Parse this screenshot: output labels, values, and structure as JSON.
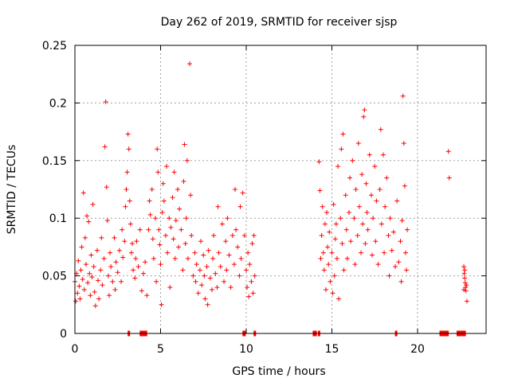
{
  "chart_data": {
    "type": "scatter",
    "title": "Day 262 of 2019, SRMTID for receiver sjsp",
    "xlabel": "GPS time / hours",
    "ylabel": "SRMTID / TECUs",
    "xlim": [
      0,
      24
    ],
    "ylim": [
      0,
      0.25
    ],
    "x_ticks": [
      0,
      5,
      10,
      15,
      20
    ],
    "x_tick_labels": [
      "0",
      "5",
      "10",
      "15",
      "20"
    ],
    "y_ticks": [
      0,
      0.05,
      0.1,
      0.15,
      0.2,
      0.25
    ],
    "y_tick_labels": [
      "0",
      "0.05",
      "0.1",
      "0.15",
      "0.2",
      "0.25"
    ],
    "grid": true,
    "marker": "plus",
    "color": "#ff0000",
    "series": [
      {
        "name": "SRMTID",
        "points": [
          [
            0.0,
            0.045
          ],
          [
            0.05,
            0.028
          ],
          [
            0.1,
            0.052
          ],
          [
            0.15,
            0.035
          ],
          [
            0.2,
            0.063
          ],
          [
            0.25,
            0.041
          ],
          [
            0.3,
            0.03
          ],
          [
            0.35,
            0.055
          ],
          [
            0.4,
            0.075
          ],
          [
            0.45,
            0.047
          ],
          [
            0.5,
            0.122
          ],
          [
            0.55,
            0.038
          ],
          [
            0.6,
            0.083
          ],
          [
            0.65,
            0.06
          ],
          [
            0.7,
            0.102
          ],
          [
            0.75,
            0.044
          ],
          [
            0.8,
            0.097
          ],
          [
            0.85,
            0.052
          ],
          [
            0.9,
            0.033
          ],
          [
            0.95,
            0.068
          ],
          [
            1.0,
            0.049
          ],
          [
            1.05,
            0.112
          ],
          [
            1.1,
            0.058
          ],
          [
            1.15,
            0.036
          ],
          [
            1.2,
            0.024
          ],
          [
            1.3,
            0.072
          ],
          [
            1.35,
            0.046
          ],
          [
            1.4,
            0.03
          ],
          [
            1.5,
            0.055
          ],
          [
            1.55,
            0.083
          ],
          [
            1.6,
            0.042
          ],
          [
            1.7,
            0.065
          ],
          [
            1.75,
            0.162
          ],
          [
            1.8,
            0.201
          ],
          [
            1.85,
            0.127
          ],
          [
            1.9,
            0.098
          ],
          [
            1.95,
            0.05
          ],
          [
            2.0,
            0.033
          ],
          [
            2.05,
            0.07
          ],
          [
            2.1,
            0.058
          ],
          [
            2.2,
            0.045
          ],
          [
            2.3,
            0.083
          ],
          [
            2.35,
            0.038
          ],
          [
            2.4,
            0.062
          ],
          [
            2.5,
            0.053
          ],
          [
            2.6,
            0.072
          ],
          [
            2.7,
            0.045
          ],
          [
            2.75,
            0.09
          ],
          [
            2.8,
            0.066
          ],
          [
            2.9,
            0.08
          ],
          [
            2.95,
            0.11
          ],
          [
            3.0,
            0.125
          ],
          [
            3.05,
            0.14
          ],
          [
            3.1,
            0.173
          ],
          [
            3.15,
            0.16
          ],
          [
            3.2,
            0.115
          ],
          [
            3.25,
            0.095
          ],
          [
            3.3,
            0.07
          ],
          [
            3.35,
            0.078
          ],
          [
            3.4,
            0.055
          ],
          [
            3.5,
            0.048
          ],
          [
            3.55,
            0.065
          ],
          [
            3.6,
            0.08
          ],
          [
            3.7,
            0.058
          ],
          [
            3.8,
            0.09
          ],
          [
            3.9,
            0.037
          ],
          [
            4.0,
            0.052
          ],
          [
            4.1,
            0.062
          ],
          [
            4.2,
            0.033
          ],
          [
            4.3,
            0.09
          ],
          [
            4.35,
            0.115
          ],
          [
            4.4,
            0.103
          ],
          [
            4.5,
            0.125
          ],
          [
            4.55,
            0.082
          ],
          [
            4.6,
            0.065
          ],
          [
            4.7,
            0.1
          ],
          [
            4.75,
            0.045
          ],
          [
            4.8,
            0.16
          ],
          [
            4.85,
            0.14
          ],
          [
            4.9,
            0.09
          ],
          [
            4.95,
            0.077
          ],
          [
            5.0,
            0.06
          ],
          [
            5.05,
            0.025
          ],
          [
            5.1,
            0.105
          ],
          [
            5.15,
            0.13
          ],
          [
            5.2,
            0.115
          ],
          [
            5.3,
            0.085
          ],
          [
            5.35,
            0.145
          ],
          [
            5.4,
            0.07
          ],
          [
            5.5,
            0.1
          ],
          [
            5.55,
            0.04
          ],
          [
            5.6,
            0.092
          ],
          [
            5.7,
            0.118
          ],
          [
            5.75,
            0.082
          ],
          [
            5.8,
            0.14
          ],
          [
            5.85,
            0.065
          ],
          [
            5.9,
            0.098
          ],
          [
            6.0,
            0.125
          ],
          [
            6.05,
            0.075
          ],
          [
            6.1,
            0.108
          ],
          [
            6.2,
            0.09
          ],
          [
            6.3,
            0.055
          ],
          [
            6.35,
            0.132
          ],
          [
            6.4,
            0.164
          ],
          [
            6.45,
            0.078
          ],
          [
            6.5,
            0.1
          ],
          [
            6.55,
            0.15
          ],
          [
            6.6,
            0.065
          ],
          [
            6.7,
            0.234
          ],
          [
            6.75,
            0.12
          ],
          [
            6.8,
            0.085
          ],
          [
            6.9,
            0.05
          ],
          [
            7.0,
            0.07
          ],
          [
            7.05,
            0.045
          ],
          [
            7.1,
            0.06
          ],
          [
            7.2,
            0.035
          ],
          [
            7.3,
            0.055
          ],
          [
            7.35,
            0.08
          ],
          [
            7.4,
            0.042
          ],
          [
            7.5,
            0.068
          ],
          [
            7.55,
            0.05
          ],
          [
            7.6,
            0.03
          ],
          [
            7.7,
            0.058
          ],
          [
            7.75,
            0.025
          ],
          [
            7.8,
            0.072
          ],
          [
            7.9,
            0.048
          ],
          [
            8.0,
            0.038
          ],
          [
            8.05,
            0.065
          ],
          [
            8.1,
            0.085
          ],
          [
            8.2,
            0.052
          ],
          [
            8.3,
            0.04
          ],
          [
            8.35,
            0.11
          ],
          [
            8.4,
            0.07
          ],
          [
            8.5,
            0.058
          ],
          [
            8.6,
            0.095
          ],
          [
            8.7,
            0.045
          ],
          [
            8.8,
            0.08
          ],
          [
            8.85,
            0.055
          ],
          [
            8.9,
            0.1
          ],
          [
            9.0,
            0.068
          ],
          [
            9.1,
            0.04
          ],
          [
            9.2,
            0.085
          ],
          [
            9.3,
            0.06
          ],
          [
            9.35,
            0.125
          ],
          [
            9.4,
            0.09
          ],
          [
            9.5,
            0.075
          ],
          [
            9.6,
            0.05
          ],
          [
            9.65,
            0.11
          ],
          [
            9.7,
            0.065
          ],
          [
            9.8,
            0.122
          ],
          [
            9.9,
            0.085
          ],
          [
            10.0,
            0.055
          ],
          [
            10.05,
            0.04
          ],
          [
            10.1,
            0.07
          ],
          [
            10.15,
            0.032
          ],
          [
            10.2,
            0.06
          ],
          [
            10.3,
            0.045
          ],
          [
            10.35,
            0.078
          ],
          [
            10.4,
            0.035
          ],
          [
            10.45,
            0.085
          ],
          [
            10.5,
            0.05
          ],
          [
            14.25,
            0.149
          ],
          [
            14.3,
            0.124
          ],
          [
            14.35,
            0.065
          ],
          [
            14.4,
            0.085
          ],
          [
            14.45,
            0.11
          ],
          [
            14.5,
            0.07
          ],
          [
            14.55,
            0.055
          ],
          [
            14.6,
            0.095
          ],
          [
            14.65,
            0.038
          ],
          [
            14.7,
            0.105
          ],
          [
            14.75,
            0.075
          ],
          [
            14.8,
            0.06
          ],
          [
            14.85,
            0.088
          ],
          [
            14.9,
            0.045
          ],
          [
            15.0,
            0.07
          ],
          [
            15.05,
            0.035
          ],
          [
            15.1,
            0.112
          ],
          [
            15.15,
            0.05
          ],
          [
            15.2,
            0.082
          ],
          [
            15.25,
            0.095
          ],
          [
            15.3,
            0.065
          ],
          [
            15.35,
            0.145
          ],
          [
            15.4,
            0.03
          ],
          [
            15.5,
            0.1
          ],
          [
            15.55,
            0.16
          ],
          [
            15.6,
            0.078
          ],
          [
            15.65,
            0.173
          ],
          [
            15.7,
            0.055
          ],
          [
            15.8,
            0.12
          ],
          [
            15.85,
            0.09
          ],
          [
            15.9,
            0.065
          ],
          [
            16.0,
            0.105
          ],
          [
            16.05,
            0.135
          ],
          [
            16.1,
            0.08
          ],
          [
            16.2,
            0.15
          ],
          [
            16.3,
            0.1
          ],
          [
            16.35,
            0.06
          ],
          [
            16.4,
            0.125
          ],
          [
            16.5,
            0.085
          ],
          [
            16.55,
            0.165
          ],
          [
            16.6,
            0.11
          ],
          [
            16.7,
            0.07
          ],
          [
            16.75,
            0.138
          ],
          [
            16.8,
            0.095
          ],
          [
            16.85,
            0.188
          ],
          [
            16.9,
            0.194
          ],
          [
            16.95,
            0.078
          ],
          [
            17.0,
            0.13
          ],
          [
            17.05,
            0.105
          ],
          [
            17.1,
            0.09
          ],
          [
            17.2,
            0.155
          ],
          [
            17.3,
            0.12
          ],
          [
            17.35,
            0.068
          ],
          [
            17.4,
            0.1
          ],
          [
            17.5,
            0.145
          ],
          [
            17.55,
            0.08
          ],
          [
            17.6,
            0.115
          ],
          [
            17.7,
            0.06
          ],
          [
            17.8,
            0.125
          ],
          [
            17.85,
            0.177
          ],
          [
            17.9,
            0.095
          ],
          [
            18.0,
            0.155
          ],
          [
            18.05,
            0.07
          ],
          [
            18.1,
            0.11
          ],
          [
            18.2,
            0.135
          ],
          [
            18.3,
            0.085
          ],
          [
            18.35,
            0.05
          ],
          [
            18.4,
            0.1
          ],
          [
            18.5,
            0.072
          ],
          [
            18.6,
            0.088
          ],
          [
            18.7,
            0.058
          ],
          [
            18.8,
            0.115
          ],
          [
            18.9,
            0.062
          ],
          [
            19.0,
            0.08
          ],
          [
            19.05,
            0.045
          ],
          [
            19.1,
            0.098
          ],
          [
            19.15,
            0.206
          ],
          [
            19.2,
            0.165
          ],
          [
            19.25,
            0.128
          ],
          [
            19.3,
            0.07
          ],
          [
            19.35,
            0.055
          ],
          [
            19.4,
            0.09
          ],
          [
            21.8,
            0.158
          ],
          [
            21.85,
            0.135
          ],
          [
            22.7,
            0.058
          ],
          [
            22.72,
            0.052
          ],
          [
            22.75,
            0.048
          ],
          [
            22.78,
            0.044
          ],
          [
            22.8,
            0.04
          ],
          [
            22.82,
            0.037
          ],
          [
            22.85,
            0.042
          ],
          [
            22.88,
            0.028
          ],
          [
            22.7,
            0.038
          ],
          [
            22.75,
            0.055
          ]
        ]
      }
    ],
    "data_gap_markers_x": [
      3.15,
      3.85,
      3.95,
      4.05,
      4.15,
      9.85,
      9.9,
      10.5,
      13.95,
      14.0,
      14.05,
      14.25,
      18.75,
      21.35,
      21.45,
      21.55,
      21.65,
      21.75,
      22.35,
      22.45,
      22.55,
      22.65,
      22.75
    ]
  }
}
